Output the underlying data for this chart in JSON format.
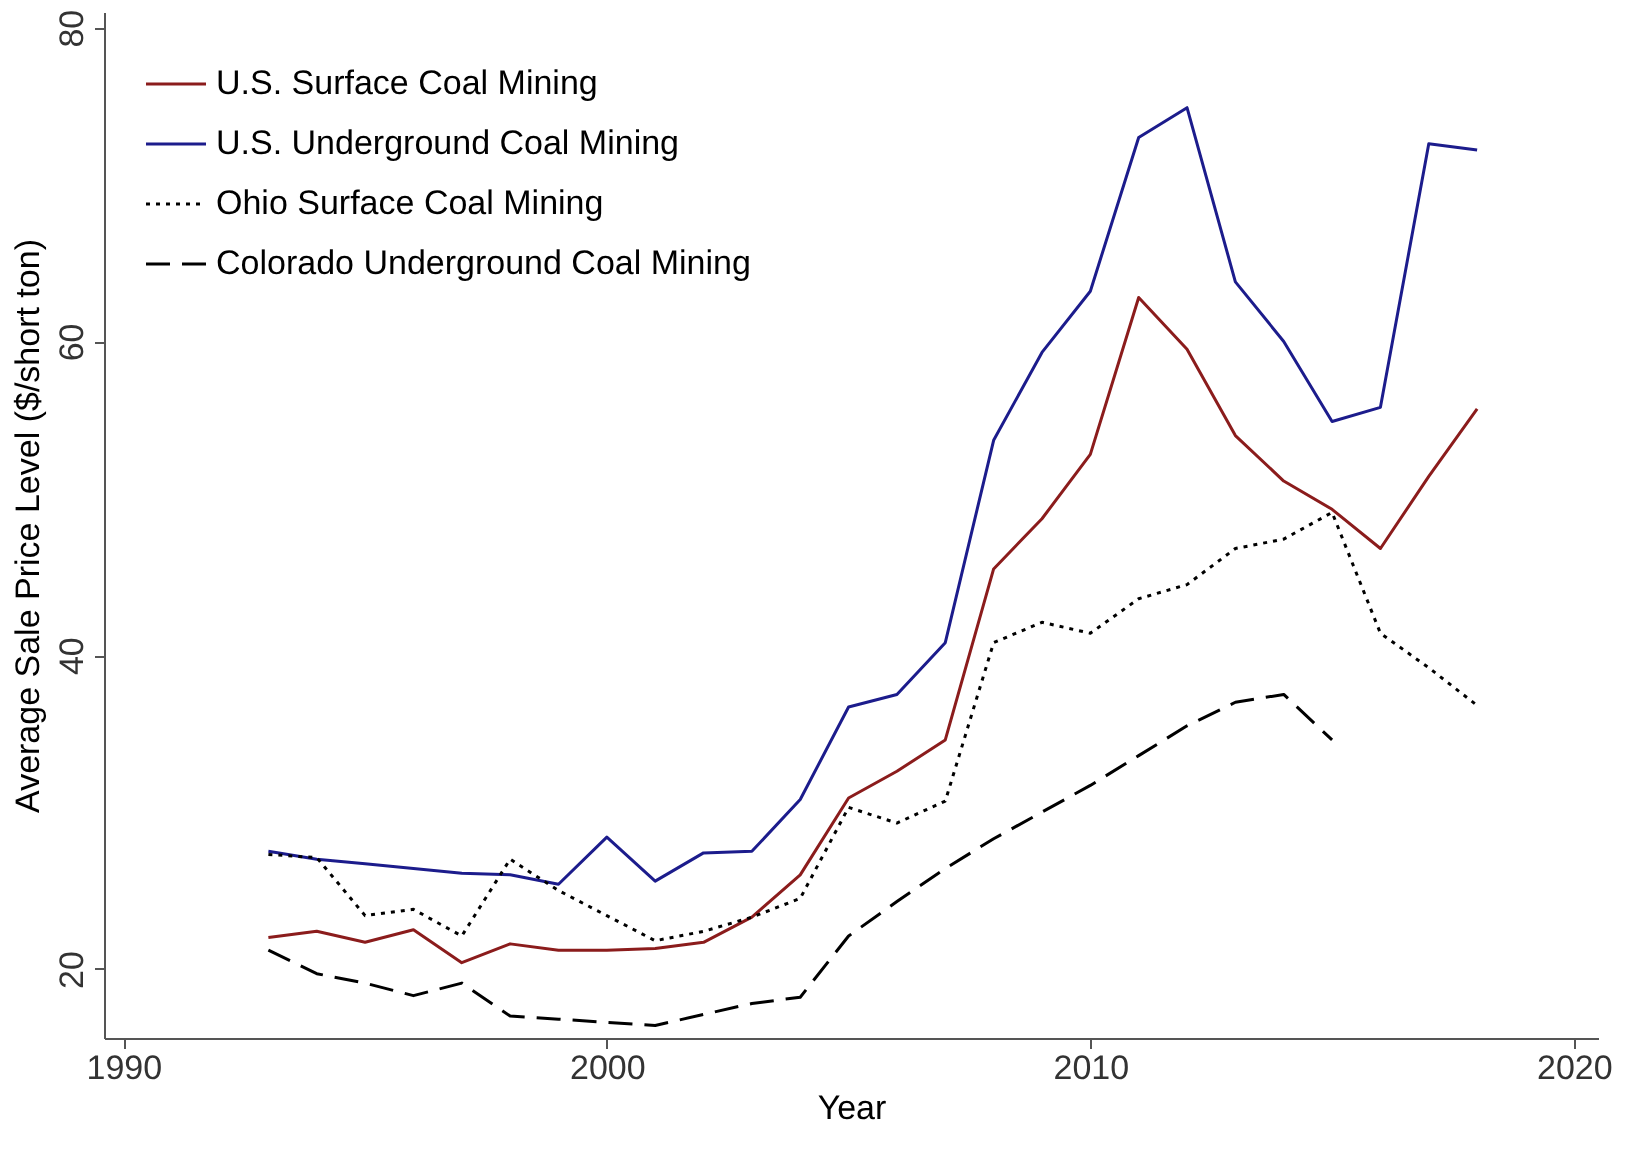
{
  "chart_data": {
    "type": "line",
    "xlabel": "Year",
    "ylabel": "Average Sale Price Level ($/short ton)",
    "x": [
      1993,
      1994,
      1995,
      1996,
      1997,
      1998,
      1999,
      2000,
      2001,
      2002,
      2003,
      2004,
      2005,
      2006,
      2007,
      2008,
      2009,
      2010,
      2011,
      2012,
      2013,
      2014,
      2015,
      2016,
      2017,
      2018
    ],
    "series": [
      {
        "name": "U.S. Surface Coal Mining",
        "color": "#8b1c1c",
        "line_style": "solid",
        "values": [
          22.0,
          22.4,
          21.7,
          22.5,
          20.4,
          21.6,
          21.2,
          21.2,
          21.3,
          21.7,
          23.3,
          26.0,
          30.9,
          32.6,
          34.6,
          45.5,
          48.7,
          52.8,
          62.8,
          59.5,
          54.0,
          51.1,
          49.3,
          46.8,
          51.4,
          55.7
        ]
      },
      {
        "name": "U.S. Underground Coal Mining",
        "color": "#1c1c8c",
        "line_style": "solid",
        "values": [
          27.5,
          27.0,
          26.7,
          26.4,
          26.1,
          26.0,
          25.4,
          28.4,
          25.6,
          27.4,
          27.5,
          30.8,
          36.7,
          37.5,
          40.8,
          53.7,
          59.3,
          63.2,
          73.0,
          74.9,
          63.8,
          60.0,
          54.9,
          55.8,
          72.6,
          72.2
        ]
      },
      {
        "name": "Ohio Surface Coal Mining",
        "color": "#000000",
        "line_style": "dotted",
        "values": [
          27.3,
          27.1,
          23.4,
          23.8,
          22.1,
          27.0,
          25.0,
          23.4,
          21.8,
          22.4,
          23.3,
          24.5,
          30.3,
          29.3,
          30.7,
          40.8,
          42.1,
          41.4,
          43.6,
          44.5,
          46.8,
          47.4,
          49.1,
          41.4,
          39.2,
          36.8
        ]
      },
      {
        "name": "Colorado Underground Coal Mining",
        "color": "#000000",
        "line_style": "dashed",
        "values": [
          21.2,
          19.7,
          19.1,
          18.3,
          19.1,
          17.0,
          16.8,
          16.6,
          16.4,
          17.1,
          17.8,
          18.2,
          22.1,
          24.3,
          26.4,
          28.3,
          30.0,
          31.7,
          33.6,
          35.5,
          37.0,
          37.5,
          34.6,
          null,
          null,
          null
        ]
      }
    ],
    "xlim": [
      1989.6,
      2020.5
    ],
    "ylim": [
      15.6,
      81
    ],
    "xticks": [
      1990,
      2000,
      2010,
      2020
    ],
    "yticks": [
      20,
      40,
      60,
      80
    ],
    "grid": false,
    "legend": "top left",
    "marker": "none"
  }
}
